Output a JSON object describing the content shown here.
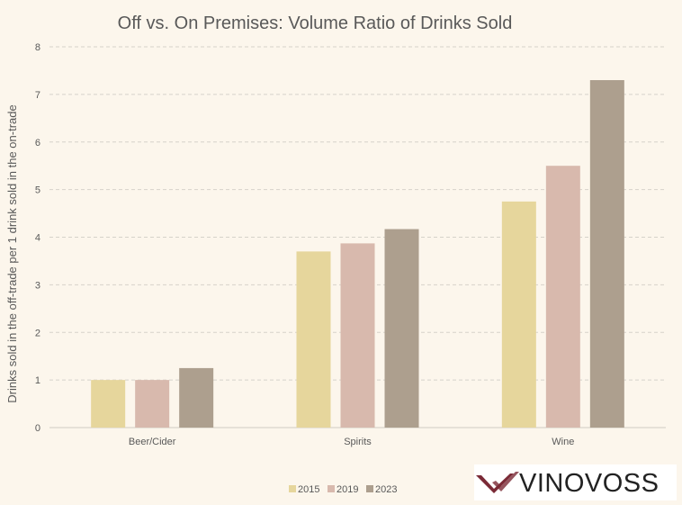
{
  "chart_data": {
    "type": "bar",
    "title": "Off vs. On Premises: Volume Ratio of Drinks Sold",
    "xlabel": "",
    "ylabel": "Drinks sold in the off-trade per 1 drink sold in the on-trade",
    "categories": [
      "Beer/Cider",
      "Spirits",
      "Wine"
    ],
    "series": [
      {
        "name": "2015",
        "color": "#e6d69c",
        "values": [
          1.0,
          3.7,
          4.75
        ]
      },
      {
        "name": "2019",
        "color": "#d8b9ad",
        "values": [
          1.0,
          3.87,
          5.5
        ]
      },
      {
        "name": "2023",
        "color": "#ad9f8e",
        "values": [
          1.25,
          4.17,
          7.3
        ]
      }
    ],
    "ylim": [
      0,
      8
    ],
    "yticks": [
      0,
      1,
      2,
      3,
      4,
      5,
      6,
      7,
      8
    ],
    "grid": true,
    "legend": "bottom"
  },
  "logo": {
    "text": "VINOVOSS",
    "color": "#7a2a36"
  }
}
